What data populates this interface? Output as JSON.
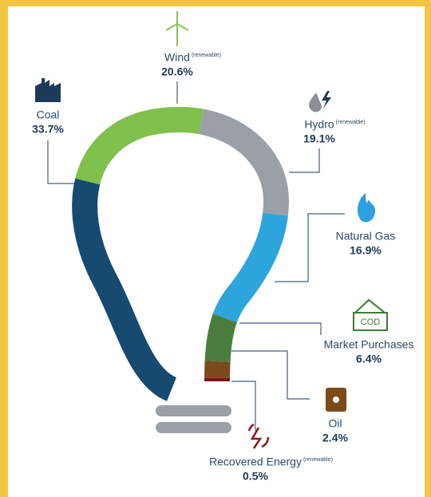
{
  "chart_data": {
    "type": "bulb",
    "categories": [
      "Coal",
      "Wind",
      "Hydro",
      "Natural Gas",
      "Market Purchases",
      "Oil",
      "Recovered Energy"
    ],
    "values": [
      33.7,
      20.6,
      19.1,
      16.9,
      6.4,
      2.4,
      0.5
    ],
    "value_labels": [
      "33.7%",
      "20.6%",
      "19.1%",
      "16.9%",
      "6.4%",
      "2.4%",
      "0.5%"
    ],
    "notes": [
      null,
      "(renewable)",
      "(renewable)",
      null,
      null,
      null,
      "(renewable)"
    ],
    "colors": [
      "#174a70",
      "#80c04c",
      "#9aa0a6",
      "#2ea4dc",
      "#4a7c3c",
      "#7a4a1a",
      "#7a1418"
    ]
  }
}
